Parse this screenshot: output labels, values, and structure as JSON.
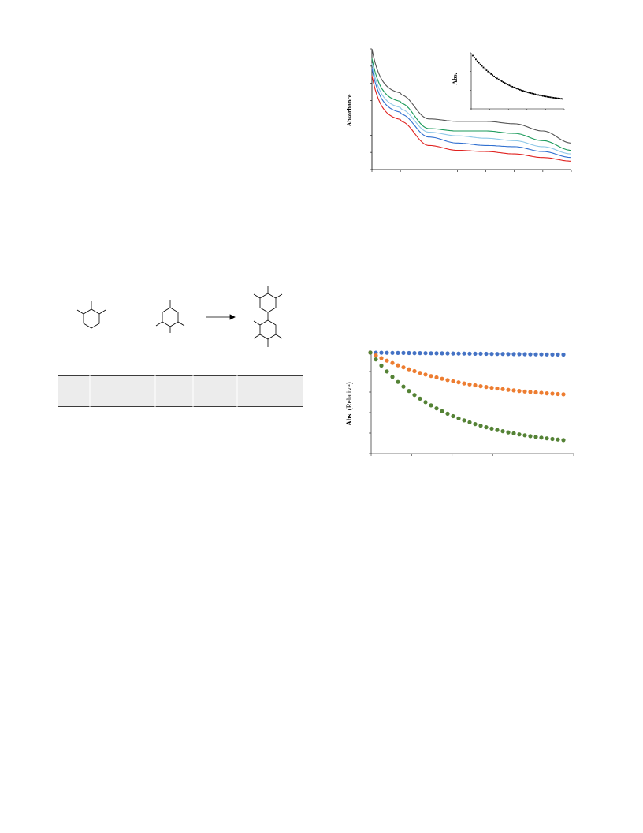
{
  "chart_spectra": {
    "type": "line",
    "ylabel": "Absorbance",
    "colors": [
      "#555555",
      "#1a9a5a",
      "#8ec8e8",
      "#2f6fd0",
      "#e0201e"
    ],
    "inset": {
      "ylabel": "Abs."
    }
  },
  "chart_kinetics": {
    "type": "scatter",
    "ylabel": "Abs.",
    "ylabel_suffix": "(Relative)",
    "colors": [
      "#4472c4",
      "#ed7d31",
      "#548235"
    ]
  },
  "chart_data": [
    {
      "type": "line",
      "series": [
        {
          "y": [
            1.0,
            0.62,
            0.42,
            0.4,
            0.4,
            0.38,
            0.32,
            0.22
          ]
        },
        {
          "y": [
            0.92,
            0.55,
            0.34,
            0.32,
            0.32,
            0.3,
            0.24,
            0.16
          ]
        },
        {
          "y": [
            0.88,
            0.5,
            0.31,
            0.28,
            0.26,
            0.24,
            0.19,
            0.13
          ]
        },
        {
          "y": [
            0.84,
            0.46,
            0.27,
            0.22,
            0.2,
            0.19,
            0.15,
            0.1
          ]
        },
        {
          "y": [
            0.78,
            0.4,
            0.2,
            0.16,
            0.15,
            0.13,
            0.1,
            0.07
          ]
        }
      ],
      "x": [
        0,
        1,
        2,
        3,
        4,
        5,
        6,
        7
      ],
      "ylim": [
        0,
        1.0
      ]
    },
    {
      "type": "scatter",
      "x_points": 36,
      "series": [
        {
          "decay": 0.02
        },
        {
          "decay": 0.42
        },
        {
          "decay": 0.88
        }
      ],
      "ylim": [
        0,
        1.0
      ]
    }
  ]
}
